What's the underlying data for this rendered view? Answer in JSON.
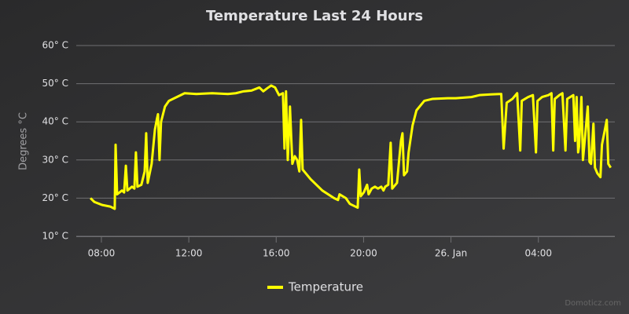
{
  "chart_data": {
    "type": "line",
    "title": "Temperature Last 24 Hours",
    "y_label": "Degrees °C",
    "credits": "Domoticz.com",
    "x": [
      7.5,
      7.68,
      8.04,
      8.4,
      8.61,
      8.65,
      8.72,
      8.94,
      9.04,
      9.12,
      9.19,
      9.4,
      9.51,
      9.58,
      9.65,
      9.83,
      9.98,
      10.05,
      10.12,
      10.3,
      10.45,
      10.55,
      10.59,
      10.66,
      10.73,
      10.91,
      11.09,
      11.45,
      11.81,
      12.35,
      13.07,
      13.79,
      14.15,
      14.51,
      14.87,
      15.23,
      15.41,
      15.59,
      15.77,
      15.95,
      16.13,
      16.31,
      16.38,
      16.45,
      16.53,
      16.63,
      16.74,
      16.85,
      16.96,
      17.06,
      17.14,
      17.21,
      17.57,
      18.11,
      18.65,
      18.83,
      18.9,
      19.19,
      19.37,
      19.73,
      19.8,
      19.87,
      20.01,
      20.16,
      20.23,
      20.37,
      20.52,
      20.66,
      20.81,
      20.91,
      20.99,
      21.13,
      21.24,
      21.31,
      21.53,
      21.71,
      21.78,
      21.85,
      21.99,
      22.06,
      22.24,
      22.42,
      22.78,
      23.14,
      23.86,
      24.22,
      24.94,
      25.3,
      25.83,
      26.3,
      26.41,
      26.55,
      26.81,
      27.03,
      27.17,
      27.24,
      27.53,
      27.75,
      27.89,
      27.96,
      28.17,
      28.46,
      28.6,
      28.68,
      28.75,
      28.96,
      29.1,
      29.24,
      29.32,
      29.6,
      29.68,
      29.75,
      29.82,
      29.86,
      29.97,
      30.04,
      30.12,
      30.26,
      30.34,
      30.41,
      30.52,
      30.59,
      30.7,
      30.84,
      30.91,
      31.13,
      31.2,
      31.31
    ],
    "series": [
      {
        "name": "Temperature",
        "color": "#ffff00",
        "values": [
          20,
          19,
          18.2,
          17.8,
          17.2,
          34,
          21,
          22,
          21.5,
          28.5,
          22,
          23,
          22.5,
          32,
          23,
          23.5,
          27,
          37,
          24,
          29,
          38,
          41,
          42,
          30,
          40,
          44,
          45.5,
          46.5,
          47.5,
          47.3,
          47.5,
          47.3,
          47.5,
          48,
          48.2,
          49,
          48,
          48.8,
          49.5,
          49,
          47,
          47.5,
          33,
          48,
          30,
          44,
          29,
          31,
          30,
          27,
          40.5,
          27.5,
          25,
          22,
          20,
          19.5,
          21,
          20,
          18.5,
          17.5,
          27.5,
          20.5,
          21.5,
          23.5,
          21,
          22.5,
          23,
          22.5,
          23,
          22,
          23,
          23.5,
          34.5,
          22.5,
          24,
          35,
          37,
          26,
          27,
          32,
          39,
          43,
          45.5,
          46,
          46.2,
          46.2,
          46.5,
          47,
          47.2,
          47.3,
          33,
          45,
          46,
          47.5,
          32.5,
          45.5,
          46.5,
          47,
          32,
          45.5,
          46.5,
          47,
          47.5,
          32.5,
          46,
          47,
          47.5,
          32.5,
          46,
          47,
          35,
          46.5,
          32,
          33.5,
          46.5,
          30,
          35,
          44,
          29.5,
          29,
          39.5,
          28,
          26.5,
          25.5,
          34,
          40.5,
          29,
          28
        ]
      }
    ],
    "xlim": [
      6.85,
      31.5
    ],
    "xticks": [
      {
        "value": 8,
        "label": "08:00"
      },
      {
        "value": 12,
        "label": "12:00"
      },
      {
        "value": 16,
        "label": "16:00"
      },
      {
        "value": 20,
        "label": "20:00"
      },
      {
        "value": 24,
        "label": "26. Jan"
      },
      {
        "value": 28,
        "label": "04:00"
      }
    ],
    "ylim": [
      10,
      60
    ],
    "yticks": [
      {
        "value": 10,
        "label": "10° C"
      },
      {
        "value": 20,
        "label": "20° C"
      },
      {
        "value": 30,
        "label": "30° C"
      },
      {
        "value": 40,
        "label": "40° C"
      },
      {
        "value": 50,
        "label": "50° C"
      },
      {
        "value": 60,
        "label": "60° C"
      }
    ],
    "grid": true
  }
}
